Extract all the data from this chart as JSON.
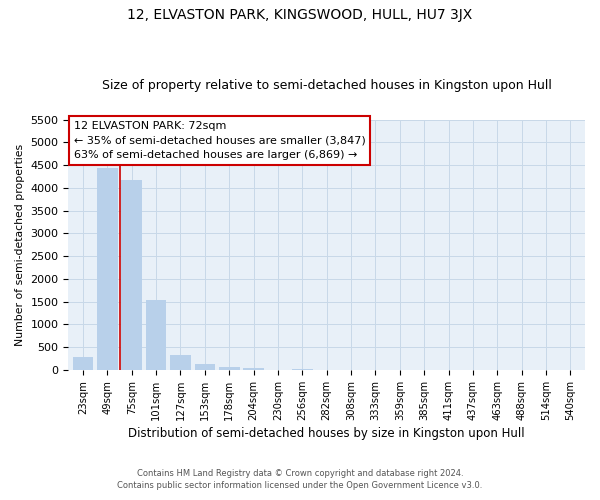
{
  "title": "12, ELVASTON PARK, KINGSWOOD, HULL, HU7 3JX",
  "subtitle": "Size of property relative to semi-detached houses in Kingston upon Hull",
  "xlabel": "Distribution of semi-detached houses by size in Kingston upon Hull",
  "ylabel": "Number of semi-detached properties",
  "footnote1": "Contains HM Land Registry data © Crown copyright and database right 2024.",
  "footnote2": "Contains public sector information licensed under the Open Government Licence v3.0.",
  "bar_labels": [
    "23sqm",
    "49sqm",
    "75sqm",
    "101sqm",
    "127sqm",
    "153sqm",
    "178sqm",
    "204sqm",
    "230sqm",
    "256sqm",
    "282sqm",
    "308sqm",
    "333sqm",
    "359sqm",
    "385sqm",
    "411sqm",
    "437sqm",
    "463sqm",
    "488sqm",
    "514sqm",
    "540sqm"
  ],
  "bar_values": [
    295,
    4430,
    4170,
    1530,
    325,
    130,
    75,
    50,
    0,
    30,
    0,
    0,
    0,
    0,
    0,
    0,
    0,
    0,
    0,
    0,
    0
  ],
  "bar_color": "#b8d0ea",
  "vline_x": 1.5,
  "vline_color": "#cc0000",
  "annotation_title": "12 ELVASTON PARK: 72sqm",
  "annotation_line1": "← 35% of semi-detached houses are smaller (3,847)",
  "annotation_line2": "63% of semi-detached houses are larger (6,869) →",
  "ylim": [
    0,
    5500
  ],
  "yticks": [
    0,
    500,
    1000,
    1500,
    2000,
    2500,
    3000,
    3500,
    4000,
    4500,
    5000,
    5500
  ],
  "background_color": "#ffffff",
  "plot_bg_color": "#e8f0f8",
  "grid_color": "#c8d8e8",
  "title_fontsize": 10,
  "subtitle_fontsize": 9
}
